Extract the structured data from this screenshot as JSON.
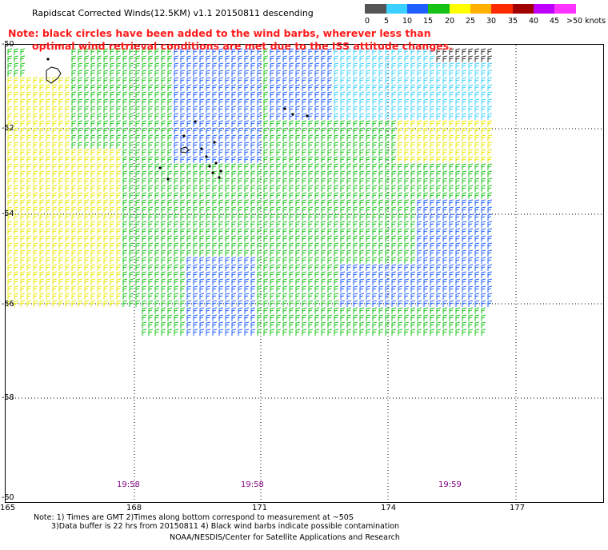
{
  "title": "Rapidscat Corrected Winds(12.5KM) v1.1 20150811 descending",
  "note_line1": "Note: black circles have been added to the wind barbs, wherever less than",
  "note_line2": "optimal wind retrieval conditions are met due to the ISS attitude changes.",
  "color_scale": {
    "labels": [
      "0",
      "5",
      "10",
      "15",
      "20",
      "25",
      "30",
      "35",
      "40",
      "45",
      ">50 knots"
    ],
    "colors": [
      "#555555",
      "#3ad0ff",
      "#1f5fff",
      "#17c217",
      "#ffff00",
      "#ffb000",
      "#ff2a00",
      "#a00000",
      "#c000ff",
      "#ff33ff",
      "#4c0070"
    ]
  },
  "axes": {
    "lat_labels": [
      "-50",
      "-52",
      "-54",
      "-56",
      "-58",
      "-60"
    ],
    "lon_labels": [
      "165",
      "168",
      "171",
      "174",
      "177"
    ]
  },
  "times": [
    "19:58",
    "19:58",
    "19:59"
  ],
  "footer": {
    "line1": "Note: 1) Times are GMT 2)Times along bottom correspond to measurement at ~50S",
    "line2": "3)Data buffer is 22 hrs from 20150811 4) Black wind barbs indicate possible contamination",
    "line3": "NOAA/NESDIS/Center for Satellite Applications and Research"
  }
}
